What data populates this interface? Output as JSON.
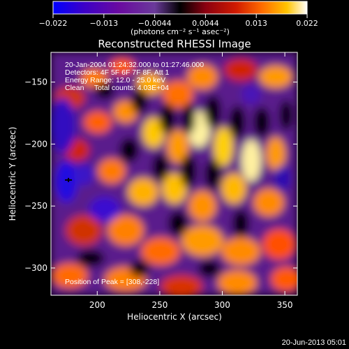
{
  "chart_data": {
    "type": "heatmap",
    "title": "Reconstructed RHESSI Image",
    "xlabel": "Heliocentric X (arcsec)",
    "ylabel": "Heliocentric Y (arcsec)",
    "xlim": [
      163,
      360
    ],
    "ylim": [
      -322,
      -126
    ],
    "xticks": [
      200,
      250,
      300,
      350
    ],
    "yticks": [
      -150,
      -200,
      -250,
      -300
    ],
    "colorbar": {
      "unit_label": "(photons cm⁻² s⁻¹ asec⁻²)",
      "range": [
        -0.022,
        0.022
      ],
      "ticks": [
        "−0.022",
        "−0.013",
        "−0.0044",
        "0.0044",
        "0.013",
        "0.022"
      ],
      "colors": [
        "#0000ff",
        "#3b00c8",
        "#6a0aa0",
        "#8a3aa0",
        "#000000",
        "#8a0010",
        "#d01a00",
        "#ff6a00",
        "#ffc400",
        "#ffffff"
      ]
    },
    "annotations": [
      "20-Jan-2004 01:24:32.000 to 01:27:46.000",
      "Detectors: 4F 5F 6F 7F 8F, Att 1",
      "Energy Range: 12.0 - 25.0 keV",
      "Clean     Total counts: 4.03E+04",
      "Position of Peak = [308,-228]"
    ],
    "peak": {
      "x": 308,
      "y": -228
    },
    "marker": {
      "x": 177,
      "y": -229
    }
  },
  "footer": {
    "date": "20-Jun-2013 05:01"
  }
}
